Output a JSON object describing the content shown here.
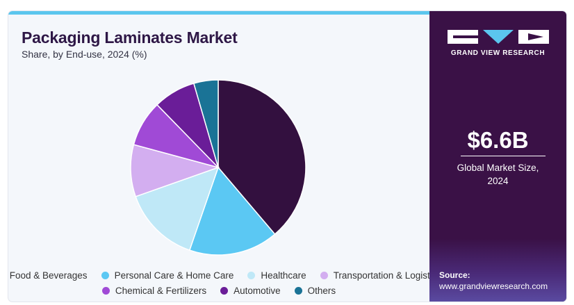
{
  "header": {
    "title": "Packaging Laminates Market",
    "subtitle": "Share, by End-use, 2024 (%)"
  },
  "brand": {
    "name": "GRAND VIEW RESEARCH"
  },
  "summary": {
    "value": "$6.6B",
    "label_line1": "Global Market Size,",
    "label_line2": "2024"
  },
  "source": {
    "label": "Source:",
    "url": "www.grandviewresearch.com"
  },
  "colors": {
    "accent_stripe": "#5bc6ee",
    "panel_bg": "#3a1146"
  },
  "chart_data": {
    "type": "pie",
    "title": "Packaging Laminates Market",
    "subtitle": "Share, by End-use, 2024 (%)",
    "legend_position": "bottom",
    "start_angle_deg": 0,
    "direction": "clockwise",
    "categories": [
      "Food & Beverages",
      "Personal Care & Home Care",
      "Healthcare",
      "Transportation & Logistics",
      "Chemical & Fertilizers",
      "Automotive",
      "Others"
    ],
    "values": [
      38.8,
      16.5,
      14.3,
      9.6,
      8.5,
      7.8,
      4.5
    ],
    "colors": [
      "#33103f",
      "#5bc8f3",
      "#bfe8f7",
      "#d3aef0",
      "#a04ad6",
      "#6a1d98",
      "#1a7396"
    ]
  }
}
